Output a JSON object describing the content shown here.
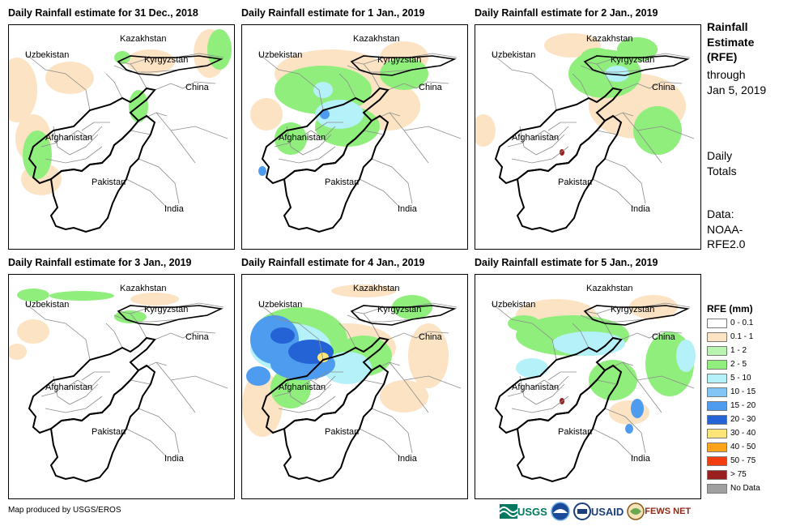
{
  "panels": [
    {
      "title": "Daily Rainfall estimate for 31 Dec., 2018",
      "rain": [
        {
          "c": "#fbe3c3",
          "blobs": [
            [
              10,
              80,
              25,
              40
            ],
            [
              75,
              65,
              30,
              20
            ],
            [
              30,
              140,
              22,
              30
            ],
            [
              248,
              35,
              20,
              30
            ],
            [
              175,
              45,
              30,
              15
            ],
            [
              40,
              190,
              25,
              20
            ]
          ]
        },
        {
          "c": "#90ee7d",
          "blobs": [
            [
              260,
              30,
              15,
              25
            ],
            [
              35,
              160,
              18,
              30
            ],
            [
              160,
              100,
              12,
              20
            ],
            [
              140,
              40,
              10,
              8
            ]
          ]
        }
      ]
    },
    {
      "title": "Daily Rainfall estimate for 1 Jan., 2019",
      "rain": [
        {
          "c": "#fbe3c3",
          "blobs": [
            [
              110,
              60,
              70,
              30
            ],
            [
              180,
              100,
              40,
              30
            ],
            [
              30,
              110,
              20,
              20
            ],
            [
              200,
              40,
              30,
              20
            ]
          ]
        },
        {
          "c": "#90ee7d",
          "blobs": [
            [
              100,
              80,
              60,
              30
            ],
            [
              130,
              125,
              40,
              25
            ],
            [
              200,
              60,
              30,
              20
            ],
            [
              60,
              140,
              20,
              20
            ]
          ]
        },
        {
          "c": "#b4f1f9",
          "blobs": [
            [
              120,
              110,
              30,
              18
            ],
            [
              100,
              80,
              12,
              10
            ]
          ]
        },
        {
          "c": "#4e9cf0",
          "blobs": [
            [
              102,
              110,
              6,
              6
            ],
            [
              25,
              180,
              5,
              6
            ]
          ]
        }
      ]
    },
    {
      "title": "Daily Rainfall estimate for 2 Jan., 2019",
      "rain": [
        {
          "c": "#fbe3c3",
          "blobs": [
            [
              200,
              100,
              60,
              40
            ],
            [
              120,
              25,
              35,
              15
            ],
            [
              10,
              130,
              15,
              20
            ]
          ]
        },
        {
          "c": "#90ee7d",
          "blobs": [
            [
              160,
              60,
              45,
              30
            ],
            [
              225,
              130,
              30,
              30
            ],
            [
              200,
              30,
              25,
              15
            ],
            [
              150,
              40,
              20,
              12
            ]
          ]
        },
        {
          "c": "#b4f1f9",
          "blobs": [
            [
              175,
              60,
              15,
              10
            ]
          ]
        },
        {
          "c": "#9a1f1f",
          "blobs": [
            [
              107,
              157,
              3,
              4
            ]
          ]
        }
      ]
    },
    {
      "title": "Daily Rainfall estimate for 3 Jan., 2019",
      "rain": [
        {
          "c": "#fbe3c3",
          "blobs": [
            [
              180,
              30,
              30,
              8
            ],
            [
              30,
              70,
              20,
              15
            ],
            [
              10,
              95,
              12,
              10
            ]
          ]
        },
        {
          "c": "#90ee7d",
          "blobs": [
            [
              90,
              26,
              40,
              6
            ],
            [
              150,
              52,
              20,
              8
            ],
            [
              30,
              25,
              20,
              8
            ]
          ]
        }
      ]
    },
    {
      "title": "Daily Rainfall estimate for 4 Jan., 2019",
      "rain": [
        {
          "c": "#fbe3c3",
          "blobs": [
            [
              130,
              90,
              60,
              30
            ],
            [
              230,
              100,
              25,
              40
            ],
            [
              25,
              160,
              25,
              40
            ],
            [
              150,
              20,
              40,
              8
            ],
            [
              200,
              150,
              30,
              20
            ]
          ]
        },
        {
          "c": "#90ee7d",
          "blobs": [
            [
              70,
              80,
              60,
              40
            ],
            [
              150,
              100,
              35,
              25
            ],
            [
              210,
              40,
              25,
              15
            ],
            [
              60,
              140,
              25,
              25
            ]
          ]
        },
        {
          "c": "#b4f1f9",
          "blobs": [
            [
              60,
              90,
              50,
              30
            ],
            [
              130,
              115,
              30,
              20
            ]
          ]
        },
        {
          "c": "#4e9cf0",
          "blobs": [
            [
              40,
              80,
              30,
              30
            ],
            [
              75,
              110,
              40,
              20
            ],
            [
              20,
              125,
              15,
              12
            ]
          ]
        },
        {
          "c": "#2363d6",
          "blobs": [
            [
              85,
              95,
              28,
              15
            ],
            [
              50,
              75,
              15,
              10
            ]
          ]
        },
        {
          "c": "#fde57a",
          "blobs": [
            [
              100,
              102,
              7,
              6
            ]
          ]
        }
      ]
    },
    {
      "title": "Daily Rainfall estimate for 5 Jan., 2019",
      "rain": [
        {
          "c": "#fbe3c3",
          "blobs": [
            [
              100,
              50,
              50,
              20
            ],
            [
              220,
              40,
              30,
              15
            ],
            [
              190,
              170,
              25,
              15
            ]
          ]
        },
        {
          "c": "#90ee7d",
          "blobs": [
            [
              120,
              75,
              70,
              25
            ],
            [
              240,
              110,
              30,
              40
            ],
            [
              170,
              130,
              30,
              25
            ],
            [
              60,
              60,
              20,
              10
            ]
          ]
        },
        {
          "c": "#b4f1f9",
          "blobs": [
            [
              140,
              85,
              45,
              15
            ],
            [
              70,
              115,
              20,
              12
            ],
            [
              260,
              100,
              12,
              20
            ]
          ]
        },
        {
          "c": "#4e9cf0",
          "blobs": [
            [
              200,
              165,
              8,
              12
            ],
            [
              190,
              190,
              5,
              6
            ]
          ]
        },
        {
          "c": "#9a1f1f",
          "blobs": [
            [
              107,
              156,
              3,
              4
            ]
          ]
        }
      ]
    }
  ],
  "country_labels": {
    "uzbekistan": "Uzbekistan",
    "kazakhstan": "Kazakhstan",
    "kyrgyzstan": "Kyrgyzstan",
    "china": "China",
    "afghanistan": "Afghanistan",
    "pakistan": "Pakistan",
    "india": "India"
  },
  "side": {
    "title_lines": [
      "Rainfall",
      "Estimate",
      "(RFE)"
    ],
    "through_lines": [
      "through",
      "Jan 5, 2019"
    ],
    "daily_lines": [
      "Daily",
      "Totals"
    ],
    "data_lines": [
      "Data:",
      "NOAA-",
      "RFE2.0"
    ]
  },
  "legend": {
    "title": "RFE (mm)",
    "items": [
      {
        "label": "0 - 0.1",
        "color": "#ffffff"
      },
      {
        "label": "0.1 - 1",
        "color": "#fbe3c3"
      },
      {
        "label": "1 - 2",
        "color": "#b9f5b0"
      },
      {
        "label": "2 - 5",
        "color": "#90ee7d"
      },
      {
        "label": "5 - 10",
        "color": "#b4f1f9"
      },
      {
        "label": "10 - 15",
        "color": "#83c5f5"
      },
      {
        "label": "15 - 20",
        "color": "#4e9cf0"
      },
      {
        "label": "20 - 30",
        "color": "#2363d6"
      },
      {
        "label": "30 - 40",
        "color": "#fde57a"
      },
      {
        "label": "40 - 50",
        "color": "#fba31a"
      },
      {
        "label": "50 - 75",
        "color": "#f23c12"
      },
      {
        "label": "> 75",
        "color": "#9a1f1f"
      },
      {
        "label": "No Data",
        "color": "#a0a0a0"
      }
    ]
  },
  "credit": "Map produced by USGS/EROS",
  "logos": {
    "usgs": "USGS",
    "usaid": "USAID",
    "fewsnet": "FEWS NET"
  }
}
